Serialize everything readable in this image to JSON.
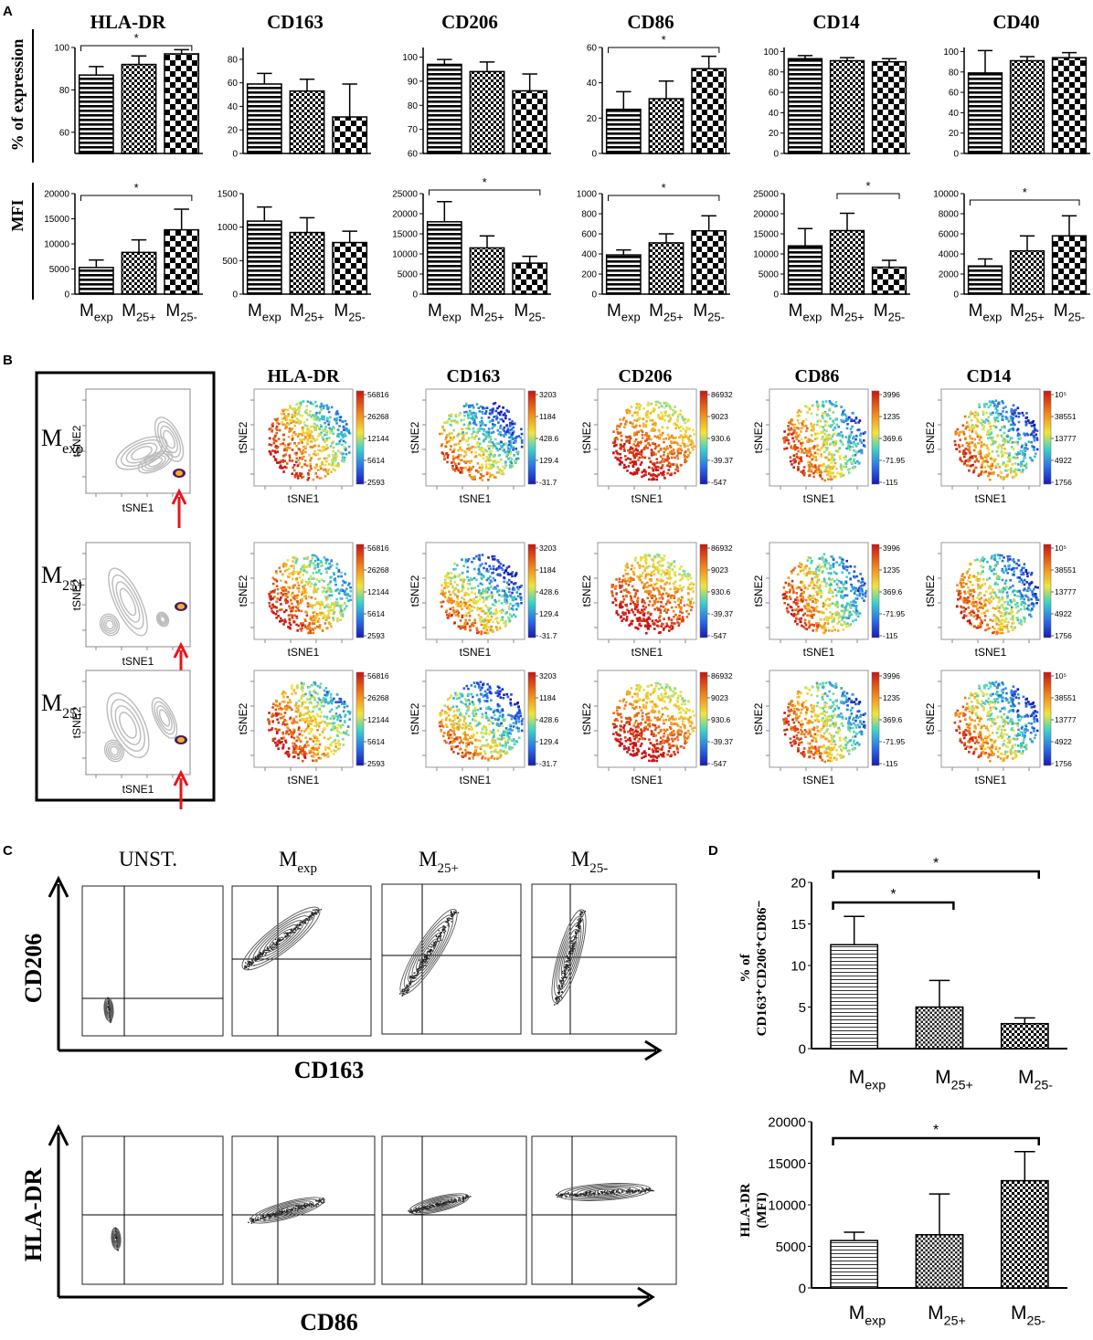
{
  "panel_labels": {
    "a": "A",
    "b": "B",
    "c": "C",
    "d": "D"
  },
  "groups": [
    "M_exp",
    "M_25+",
    "M_25-"
  ],
  "group_labels": {
    "exp": {
      "main": "M",
      "sub": "exp"
    },
    "p25": {
      "main": "M",
      "sub": "25+"
    },
    "m25": {
      "main": "M",
      "sub": "25-"
    }
  },
  "sig_label": "*",
  "colors": {
    "stripe": "#000000",
    "bar_fill": "#ffffff",
    "arrow": "#e8141b",
    "axis": "#000000"
  },
  "panel_a": {
    "row_labels": {
      "percent": "% of expression",
      "mfi": "MFI"
    },
    "markers": [
      "HLA-DR",
      "CD163",
      "CD206",
      "CD86",
      "CD14",
      "CD40"
    ],
    "chart_data": [
      {
        "type": "bar",
        "title": "HLA-DR",
        "ylabel": "% of expression",
        "ylim": [
          50,
          100
        ],
        "ticks": [
          60,
          80,
          100
        ],
        "categories": [
          "M_exp",
          "M_25+",
          "M_25-"
        ],
        "values": [
          87,
          92,
          97
        ],
        "errors": [
          4,
          4,
          2
        ],
        "significance": [
          {
            "from": "M_exp",
            "to": "M_25-",
            "label": "*"
          }
        ]
      },
      {
        "type": "bar",
        "title": "CD163",
        "ylabel": "% of expression",
        "ylim": [
          0,
          90
        ],
        "ticks": [
          0,
          20,
          40,
          60,
          80
        ],
        "categories": [
          "M_exp",
          "M_25+",
          "M_25-"
        ],
        "values": [
          59,
          53,
          31
        ],
        "errors": [
          9,
          10,
          28
        ],
        "significance": []
      },
      {
        "type": "bar",
        "title": "CD206",
        "ylabel": "% of expression",
        "ylim": [
          60,
          104
        ],
        "ticks": [
          60,
          70,
          80,
          90,
          100
        ],
        "categories": [
          "M_exp",
          "M_25+",
          "M_25-"
        ],
        "values": [
          97,
          94,
          86
        ],
        "errors": [
          2,
          4,
          7
        ],
        "significance": []
      },
      {
        "type": "bar",
        "title": "CD86",
        "ylabel": "% of expression",
        "ylim": [
          0,
          60
        ],
        "ticks": [
          0,
          20,
          40,
          60
        ],
        "categories": [
          "M_exp",
          "M_25+",
          "M_25-"
        ],
        "values": [
          25,
          31,
          48
        ],
        "errors": [
          10,
          10,
          7
        ],
        "significance": [
          {
            "from": "M_exp",
            "to": "M_25-",
            "label": "*"
          }
        ]
      },
      {
        "type": "bar",
        "title": "CD14",
        "ylabel": "% of expression",
        "ylim": [
          0,
          104
        ],
        "ticks": [
          0,
          20,
          40,
          60,
          80,
          100
        ],
        "categories": [
          "M_exp",
          "M_25+",
          "M_25-"
        ],
        "values": [
          93,
          91,
          90
        ],
        "errors": [
          3,
          3,
          3
        ],
        "significance": []
      },
      {
        "type": "bar",
        "title": "CD40",
        "ylabel": "% of expression",
        "ylim": [
          0,
          104
        ],
        "ticks": [
          0,
          20,
          40,
          60,
          80,
          100
        ],
        "categories": [
          "M_exp",
          "M_25+",
          "M_25-"
        ],
        "values": [
          79,
          91,
          94
        ],
        "errors": [
          22,
          4,
          5
        ],
        "significance": []
      },
      {
        "type": "bar",
        "title": "HLA-DR",
        "ylabel": "MFI",
        "ylim": [
          0,
          20000
        ],
        "ticks": [
          0,
          5000,
          10000,
          15000,
          20000
        ],
        "categories": [
          "M_exp",
          "M_25+",
          "M_25-"
        ],
        "values": [
          5300,
          8300,
          12800
        ],
        "errors": [
          1500,
          2500,
          4100
        ],
        "significance": [
          {
            "from": "M_exp",
            "to": "M_25-",
            "label": "*"
          }
        ]
      },
      {
        "type": "bar",
        "title": "CD163",
        "ylabel": "MFI",
        "ylim": [
          0,
          1500
        ],
        "ticks": [
          0,
          500,
          1000,
          1500
        ],
        "categories": [
          "M_exp",
          "M_25+",
          "M_25-"
        ],
        "values": [
          1090,
          920,
          770
        ],
        "errors": [
          210,
          220,
          170
        ],
        "significance": []
      },
      {
        "type": "bar",
        "title": "CD206",
        "ylabel": "MFI",
        "ylim": [
          0,
          25000
        ],
        "ticks": [
          0,
          5000,
          10000,
          15000,
          20000,
          25000
        ],
        "categories": [
          "M_exp",
          "M_25+",
          "M_25-"
        ],
        "values": [
          18000,
          11500,
          7700
        ],
        "errors": [
          5000,
          3000,
          1700
        ],
        "significance": [
          {
            "from": "M_exp",
            "to": "M_25-",
            "label": "*"
          }
        ]
      },
      {
        "type": "bar",
        "title": "CD86",
        "ylabel": "MFI",
        "ylim": [
          0,
          1000
        ],
        "ticks": [
          0,
          200,
          400,
          600,
          800,
          1000
        ],
        "categories": [
          "M_exp",
          "M_25+",
          "M_25-"
        ],
        "values": [
          390,
          510,
          630
        ],
        "errors": [
          50,
          90,
          150
        ],
        "significance": [
          {
            "from": "M_exp",
            "to": "M_25-",
            "label": "*"
          }
        ]
      },
      {
        "type": "bar",
        "title": "CD14",
        "ylabel": "MFI",
        "ylim": [
          0,
          25000
        ],
        "ticks": [
          0,
          5000,
          10000,
          15000,
          20000,
          25000
        ],
        "categories": [
          "M_exp",
          "M_25+",
          "M_25-"
        ],
        "values": [
          12000,
          15800,
          6700
        ],
        "errors": [
          4300,
          4300,
          1700
        ],
        "significance": [
          {
            "from": "M_25+",
            "to": "M_25-",
            "label": "*"
          }
        ]
      },
      {
        "type": "bar",
        "title": "CD40",
        "ylabel": "MFI",
        "ylim": [
          0,
          10000
        ],
        "ticks": [
          0,
          2000,
          4000,
          6000,
          8000,
          10000
        ],
        "categories": [
          "M_exp",
          "M_25+",
          "M_25-"
        ],
        "values": [
          2800,
          4300,
          5800
        ],
        "errors": [
          700,
          1500,
          2000
        ],
        "significance": [
          {
            "from": "M_exp",
            "to": "M_25-",
            "label": "*"
          }
        ]
      }
    ]
  },
  "panel_b": {
    "axis_x": "tSNE1",
    "axis_y": "tSNE2",
    "rows": [
      {
        "main": "M",
        "sub": "exp"
      },
      {
        "main": "M",
        "sub": "25+"
      },
      {
        "main": "M",
        "sub": "25-"
      }
    ],
    "markers": [
      {
        "name": "HLA-DR",
        "scale": [
          "56816",
          "26268",
          "12144",
          "5614",
          "2593"
        ]
      },
      {
        "name": "CD163",
        "scale": [
          "3203",
          "1184",
          "428.6",
          "129.4",
          "-31.7"
        ]
      },
      {
        "name": "CD206",
        "scale": [
          "86932",
          "9023",
          "930.6",
          "-39.37",
          "-547"
        ]
      },
      {
        "name": "CD86",
        "scale": [
          "3996",
          "1235",
          "369.6",
          "-71.95",
          "-115"
        ]
      },
      {
        "name": "CD14",
        "scale": [
          "10⁵",
          "38551",
          "13777",
          "4922",
          "1756"
        ]
      }
    ]
  },
  "panel_c": {
    "column_labels": [
      {
        "main": "UNST.",
        "sub": ""
      },
      {
        "main": "M",
        "sub": "exp"
      },
      {
        "main": "M",
        "sub": "25+"
      },
      {
        "main": "M",
        "sub": "25-"
      }
    ],
    "top": {
      "x_label": "CD163",
      "y_label": "CD206"
    },
    "bottom": {
      "x_label": "CD86",
      "y_label": "HLA-DR"
    }
  },
  "panel_d": {
    "chart_data": [
      {
        "type": "bar",
        "ylabel_line1": "% of",
        "ylabel_line2": "CD163⁺CD206⁺CD86⁻",
        "ylim": [
          0,
          20
        ],
        "ticks": [
          0,
          5,
          10,
          15,
          20
        ],
        "categories": [
          "M_exp",
          "M_25+",
          "M_25-"
        ],
        "values": [
          12.5,
          5.0,
          3.0
        ],
        "errors": [
          3.4,
          3.2,
          0.7
        ],
        "significance": [
          {
            "from": "M_exp",
            "to": "M_25-",
            "label": "*"
          },
          {
            "from": "M_exp",
            "to": "M_25+",
            "label": "*"
          }
        ]
      },
      {
        "type": "bar",
        "ylabel_line1": "HLA-DR",
        "ylabel_line2": "(MFI)",
        "ylim": [
          0,
          20000
        ],
        "ticks": [
          0,
          5000,
          10000,
          15000,
          20000
        ],
        "categories": [
          "M_exp",
          "M_25+",
          "M_25-"
        ],
        "values": [
          5700,
          6400,
          12900
        ],
        "errors": [
          1000,
          4900,
          3500
        ],
        "significance": [
          {
            "from": "M_exp",
            "to": "M_25-",
            "label": "*"
          }
        ]
      }
    ]
  }
}
